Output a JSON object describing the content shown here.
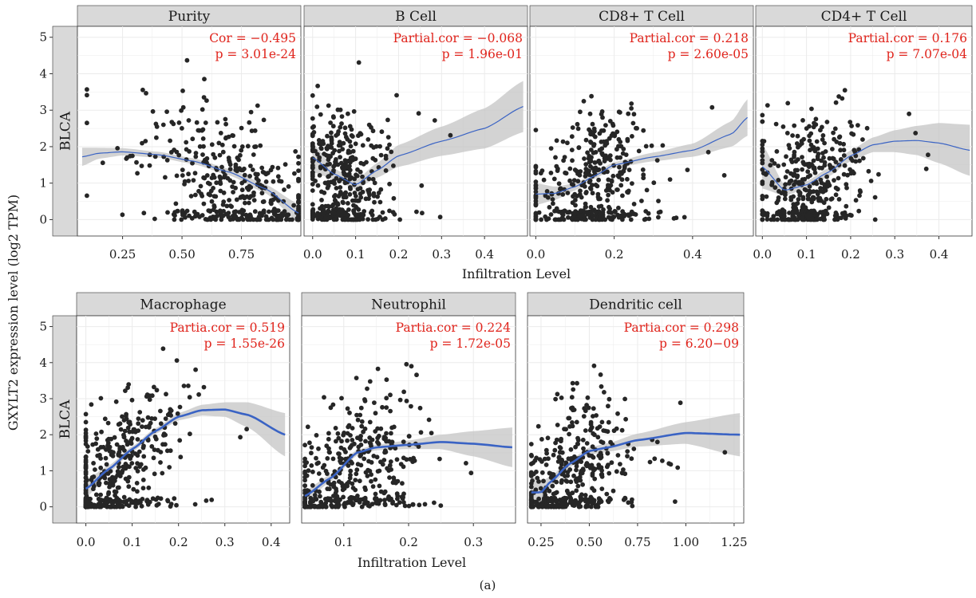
{
  "figure": {
    "ylabel": "GXYLT2 expression level (log2 TPM)",
    "caption": "(a)",
    "colors": {
      "point": "#262626",
      "fit": "#3a63c4",
      "band": "#c4c4c4",
      "strip": "#d9d9d9",
      "stat": "#e0241c",
      "grid": "#ebebeb"
    }
  },
  "chart_data": [
    {
      "row": 1,
      "row_label": "BLCA",
      "xlabel": "Infiltration Level",
      "ylabel": "GXYLT2 expression level (log2 TPM)",
      "panels": [
        {
          "type": "scatter",
          "title": "Purity",
          "stat1": "Cor = −0.495",
          "stat2": "p = 3.01e-24",
          "xlim": [
            0.06,
            1.0
          ],
          "ylim": [
            -0.45,
            5.3
          ],
          "xticks": [
            0.25,
            0.5,
            0.75
          ],
          "xtick_labels": [
            "0.25",
            "0.50",
            "0.75"
          ],
          "xcluster": {
            "center": 0.72,
            "spread": 0.17,
            "min": 0.1,
            "max": 0.99
          },
          "fit": {
            "x": [
              0.08,
              0.15,
              0.25,
              0.4,
              0.55,
              0.7,
              0.85,
              0.99
            ],
            "y": [
              1.72,
              1.82,
              1.86,
              1.78,
              1.6,
              1.3,
              0.85,
              0.18
            ]
          },
          "band_width": [
            0.25,
            0.15,
            0.1,
            0.08,
            0.08,
            0.09,
            0.12,
            0.25
          ],
          "fit_width": 1.2
        },
        {
          "type": "scatter",
          "title": "B Cell",
          "stat1": "Partial.cor = −0.068",
          "stat2": "p = 1.96e-01",
          "xlim": [
            -0.02,
            0.5
          ],
          "ylim": [
            -0.45,
            5.3
          ],
          "xticks": [
            0.0,
            0.1,
            0.2,
            0.3,
            0.4
          ],
          "xtick_labels": [
            "0.0",
            "0.1",
            "0.2",
            "0.3",
            "0.4"
          ],
          "xcluster": {
            "center": 0.07,
            "spread": 0.045,
            "min": 0.0,
            "max": 0.49
          },
          "fit": {
            "x": [
              0.0,
              0.05,
              0.1,
              0.15,
              0.2,
              0.3,
              0.4,
              0.49
            ],
            "y": [
              1.7,
              1.25,
              0.95,
              1.35,
              1.75,
              2.15,
              2.5,
              3.1
            ]
          },
          "band_width": [
            0.4,
            0.15,
            0.12,
            0.2,
            0.3,
            0.4,
            0.55,
            0.7
          ],
          "fit_width": 1.2
        },
        {
          "type": "scatter",
          "title": "CD8+ T Cell",
          "stat1": "Partial.cor = 0.218",
          "stat2": "p = 2.60e-05",
          "xlim": [
            -0.015,
            0.555
          ],
          "ylim": [
            -0.45,
            5.3
          ],
          "xticks": [
            0.0,
            0.2,
            0.4
          ],
          "xtick_labels": [
            "0.0",
            "0.2",
            "0.4"
          ],
          "xcluster": {
            "center": 0.15,
            "spread": 0.07,
            "min": 0.0,
            "max": 0.54
          },
          "fit": {
            "x": [
              0.0,
              0.05,
              0.1,
              0.15,
              0.2,
              0.3,
              0.4,
              0.5,
              0.54
            ],
            "y": [
              0.7,
              0.72,
              0.9,
              1.2,
              1.5,
              1.72,
              1.9,
              2.35,
              2.8
            ]
          },
          "band_width": [
            0.3,
            0.18,
            0.1,
            0.08,
            0.08,
            0.12,
            0.18,
            0.35,
            0.5
          ],
          "fit_width": 1.2
        },
        {
          "type": "scatter",
          "title": "CD4+ T Cell",
          "stat1": "Partial.cor = 0.176",
          "stat2": "p = 7.07e-04",
          "xlim": [
            -0.015,
            0.475
          ],
          "ylim": [
            -0.45,
            5.3
          ],
          "xticks": [
            0.0,
            0.1,
            0.2,
            0.3,
            0.4
          ],
          "xtick_labels": [
            "0.0",
            "0.1",
            "0.2",
            "0.3",
            "0.4"
          ],
          "xcluster": {
            "center": 0.11,
            "spread": 0.05,
            "min": 0.0,
            "max": 0.47
          },
          "fit": {
            "x": [
              0.0,
              0.05,
              0.1,
              0.15,
              0.2,
              0.25,
              0.3,
              0.35,
              0.4,
              0.47
            ],
            "y": [
              1.45,
              0.8,
              0.95,
              1.3,
              1.75,
              2.05,
              2.15,
              2.17,
              2.1,
              1.9
            ]
          },
          "band_width": [
            0.6,
            0.15,
            0.1,
            0.12,
            0.15,
            0.2,
            0.3,
            0.4,
            0.55,
            0.7
          ],
          "fit_width": 1.2
        }
      ]
    },
    {
      "row": 2,
      "row_label": "BLCA",
      "xlabel": "Infiltration Level",
      "ylabel": "",
      "panels": [
        {
          "type": "scatter",
          "title": "Macrophage",
          "stat1": "Partia.cor = 0.519",
          "stat2": "p = 1.55e-26",
          "xlim": [
            -0.02,
            0.44
          ],
          "ylim": [
            -0.45,
            5.3
          ],
          "xticks": [
            0.0,
            0.1,
            0.2,
            0.3,
            0.4
          ],
          "xtick_labels": [
            "0.0",
            "0.1",
            "0.2",
            "0.3",
            "0.4"
          ],
          "xcluster": {
            "center": 0.07,
            "spread": 0.06,
            "min": 0.0,
            "max": 0.43
          },
          "fit": {
            "x": [
              0.0,
              0.05,
              0.1,
              0.15,
              0.2,
              0.25,
              0.3,
              0.35,
              0.43
            ],
            "y": [
              0.5,
              1.05,
              1.6,
              2.1,
              2.5,
              2.68,
              2.7,
              2.55,
              2.0
            ]
          },
          "band_width": [
            0.25,
            0.1,
            0.08,
            0.08,
            0.1,
            0.15,
            0.2,
            0.35,
            0.6
          ],
          "fit_width": 2.6
        },
        {
          "type": "scatter",
          "title": "Neutrophil",
          "stat1": "Partia.cor = 0.224",
          "stat2": "p = 1.72e-05",
          "xlim": [
            0.035,
            0.365
          ],
          "ylim": [
            -0.45,
            5.3
          ],
          "xticks": [
            0.1,
            0.2,
            0.3
          ],
          "xtick_labels": [
            "0.1",
            "0.2",
            "0.3"
          ],
          "xcluster": {
            "center": 0.11,
            "spread": 0.045,
            "min": 0.04,
            "max": 0.36
          },
          "fit": {
            "x": [
              0.04,
              0.08,
              0.12,
              0.15,
              0.2,
              0.25,
              0.3,
              0.36
            ],
            "y": [
              0.3,
              0.8,
              1.5,
              1.65,
              1.72,
              1.8,
              1.75,
              1.65
            ]
          },
          "band_width": [
            0.15,
            0.1,
            0.08,
            0.08,
            0.12,
            0.2,
            0.35,
            0.55
          ],
          "fit_width": 2.6
        },
        {
          "type": "scatter",
          "title": "Dendritic cell",
          "stat1": "Partia.cor = 0.298",
          "stat2": "p = 6.20−09",
          "xlim": [
            0.18,
            1.3
          ],
          "ylim": [
            -0.45,
            5.3
          ],
          "xticks": [
            0.25,
            0.5,
            0.75,
            1.0,
            1.25
          ],
          "xtick_labels": [
            "0.25",
            "0.50",
            "0.75",
            "1.00",
            "1.25"
          ],
          "xcluster": {
            "center": 0.42,
            "spread": 0.13,
            "min": 0.2,
            "max": 1.28
          },
          "fit": {
            "x": [
              0.2,
              0.25,
              0.3,
              0.4,
              0.5,
              0.6,
              0.75,
              1.0,
              1.28
            ],
            "y": [
              0.4,
              0.4,
              0.7,
              1.2,
              1.55,
              1.65,
              1.85,
              2.05,
              2.0
            ]
          },
          "band_width": [
            0.45,
            0.3,
            0.15,
            0.1,
            0.1,
            0.12,
            0.18,
            0.3,
            0.6
          ],
          "fit_width": 2.6
        }
      ]
    }
  ],
  "yticks": [
    0,
    1,
    2,
    3,
    4,
    5
  ],
  "ytick_labels": [
    "0",
    "1",
    "2",
    "3",
    "4",
    "5"
  ]
}
